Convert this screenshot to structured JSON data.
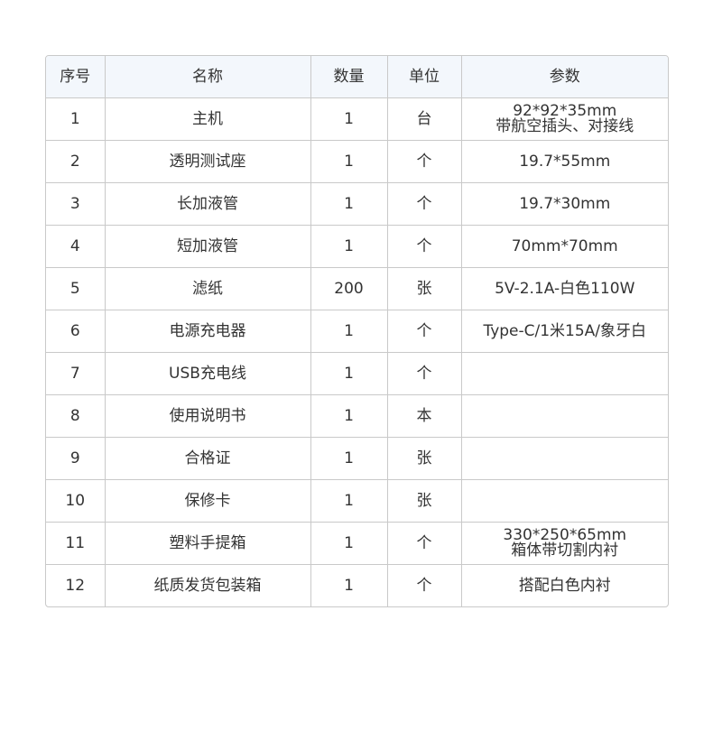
{
  "table": {
    "headers": [
      "序号",
      "名称",
      "数量",
      "单位",
      "参数"
    ],
    "rows": [
      {
        "no": "1",
        "name": "主机",
        "qty": "1",
        "unit": "台",
        "spec": [
          "92*92*35mm",
          "带航空插头、对接线"
        ]
      },
      {
        "no": "2",
        "name": "透明测试座",
        "qty": "1",
        "unit": "个",
        "spec": [
          "19.7*55mm"
        ]
      },
      {
        "no": "3",
        "name": "长加液管",
        "qty": "1",
        "unit": "个",
        "spec": [
          "19.7*30mm"
        ]
      },
      {
        "no": "4",
        "name": "短加液管",
        "qty": "1",
        "unit": "个",
        "spec": [
          "70mm*70mm"
        ]
      },
      {
        "no": "5",
        "name": "滤纸",
        "qty": "200",
        "unit": "张",
        "spec": [
          "5V-2.1A-白色110W"
        ]
      },
      {
        "no": "6",
        "name": "电源充电器",
        "qty": "1",
        "unit": "个",
        "spec": [
          "Type-C/1米15A/象牙白"
        ]
      },
      {
        "no": "7",
        "name": "USB充电线",
        "qty": "1",
        "unit": "个",
        "spec": []
      },
      {
        "no": "8",
        "name": "使用说明书",
        "qty": "1",
        "unit": "本",
        "spec": []
      },
      {
        "no": "9",
        "name": "合格证",
        "qty": "1",
        "unit": "张",
        "spec": []
      },
      {
        "no": "10",
        "name": "保修卡",
        "qty": "1",
        "unit": "张",
        "spec": []
      },
      {
        "no": "11",
        "name": "塑料手提箱",
        "qty": "1",
        "unit": "个",
        "spec": [
          "330*250*65mm",
          "箱体带切割内衬"
        ]
      },
      {
        "no": "12",
        "name": "纸质发货包装箱",
        "qty": "1",
        "unit": "个",
        "spec": [
          "搭配白色内衬"
        ]
      }
    ]
  }
}
